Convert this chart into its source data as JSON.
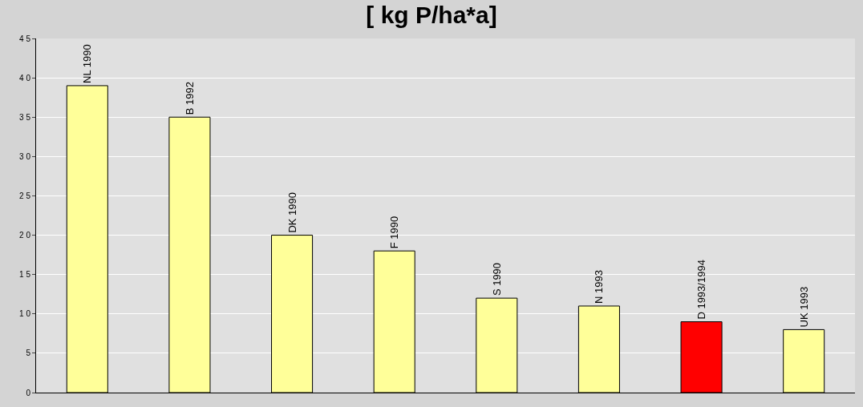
{
  "chart_data": {
    "type": "bar",
    "title": "[ kg P/ha*a]",
    "categories": [
      "NL 1990",
      "B 1992",
      "DK 1990",
      "F 1990",
      "S 1990",
      "N 1993",
      "D 1993/1994",
      "UK 1993"
    ],
    "values": [
      39,
      35,
      20,
      18,
      12,
      11,
      9,
      8
    ],
    "colors": [
      "#ffff99",
      "#ffff99",
      "#ffff99",
      "#ffff99",
      "#ffff99",
      "#ffff99",
      "#ff0000",
      "#ffff99"
    ],
    "ylim": [
      0,
      45
    ],
    "yticks": [
      0,
      5,
      10,
      15,
      20,
      25,
      30,
      35,
      40,
      45
    ],
    "grid": "y",
    "tick_labels": "y"
  }
}
